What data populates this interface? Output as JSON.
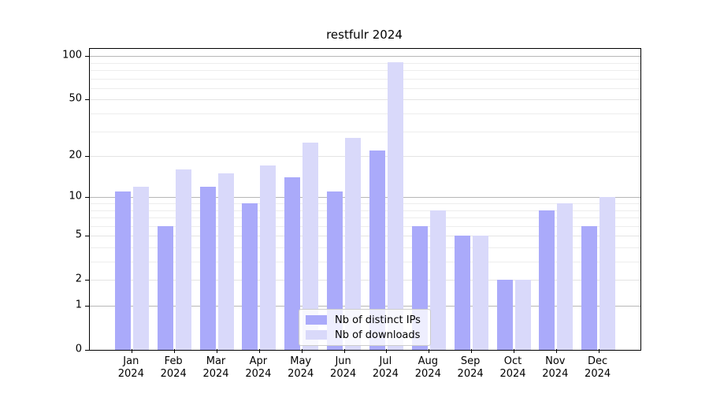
{
  "chart_data": {
    "type": "bar",
    "title": "restfulr 2024",
    "categories": [
      "Jan 2024",
      "Feb 2024",
      "Mar 2024",
      "Apr 2024",
      "May 2024",
      "Jun 2024",
      "Jul 2024",
      "Aug 2024",
      "Sep 2024",
      "Oct 2024",
      "Nov 2024",
      "Dec 2024"
    ],
    "series": [
      {
        "name": "Nb of distinct IPs",
        "color": "#aaaafa",
        "values": [
          11,
          6,
          12,
          9,
          14,
          11,
          22,
          6,
          5,
          2,
          8,
          6
        ]
      },
      {
        "name": "Nb of downloads",
        "color": "#d9d9fa",
        "values": [
          12,
          16,
          15,
          17,
          25,
          27,
          91,
          8,
          5,
          2,
          9,
          10
        ]
      }
    ],
    "xlabel": "",
    "ylabel": "",
    "yscale": "log1p",
    "ylim": [
      0,
      112
    ],
    "yticks": [
      0,
      1,
      2,
      5,
      10,
      20,
      50,
      100
    ],
    "ytick_labels": [
      "0",
      "1",
      "2",
      "5",
      "10",
      "20",
      "50",
      "100"
    ],
    "minor_yticks": [
      3,
      4,
      6,
      7,
      8,
      9,
      30,
      40,
      60,
      70,
      80,
      90
    ],
    "grid": "horizontal",
    "legend_position": "bottom-center",
    "colors": {
      "bar_distinct_ips": "#aaaafa",
      "bar_downloads": "#d9d9fa",
      "decade_gridline": "#b7b7b7",
      "minor_gridline": "#ededed",
      "spine": "#000000",
      "background": "#ffffff"
    }
  }
}
